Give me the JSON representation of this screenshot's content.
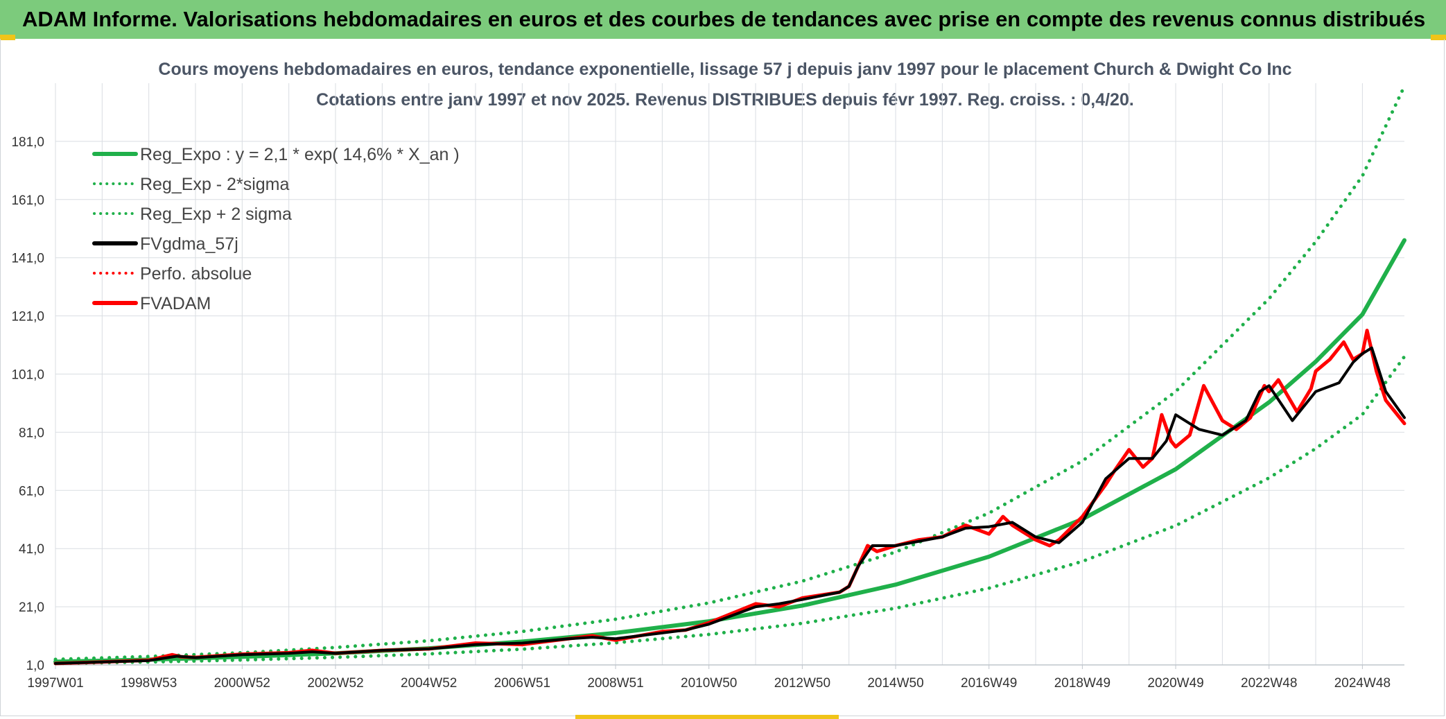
{
  "header": {
    "banner": "ADAM Informe. Valorisations hebdomadaires en euros et des courbes de tendances avec prise en compte des revenus connus distribués"
  },
  "colors": {
    "banner_bg": "#7ccb7c",
    "trend": "#1fb04a",
    "price": "#ff0000",
    "smoothed": "#000000",
    "accent": "#f0c419"
  },
  "chart_data": {
    "type": "line",
    "title": "Cours moyens hebdomadaires en euros, tendance exponentielle, lissage 57 j depuis janv 1997 pour le placement Church & Dwight Co Inc",
    "subtitle": "Cotations entre janv 1997 et nov 2025. Revenus DISTRIBUES depuis févr 1997. Reg. croiss. : 0,4/20.",
    "xlabel": "",
    "ylabel": "",
    "x_ticks": [
      "1997W01",
      "1998W53",
      "2000W52",
      "2002W52",
      "2004W52",
      "2006W51",
      "2008W51",
      "2010W50",
      "2012W50",
      "2014W50",
      "2016W49",
      "2018W49",
      "2020W49",
      "2022W48",
      "2024W48"
    ],
    "x_tick_years": [
      1997.0,
      1999.0,
      2001.0,
      2003.0,
      2005.0,
      2007.0,
      2009.0,
      2011.0,
      2013.0,
      2015.0,
      2017.0,
      2019.0,
      2021.0,
      2023.0,
      2025.0
    ],
    "y_ticks": [
      "1,0",
      "21,0",
      "41,0",
      "61,0",
      "81,0",
      "101,0",
      "121,0",
      "141,0",
      "161,0",
      "181,0"
    ],
    "ylim": [
      1,
      201
    ],
    "xlim": [
      1997.0,
      2025.9
    ],
    "grid": true,
    "legend_position": "top-left",
    "legend": [
      {
        "label": "Reg_Expo : y = 2,1 * exp( 14,6% *  X_an )",
        "style": "solid",
        "color": "#1fb04a"
      },
      {
        "label": "Reg_Exp - 2*sigma",
        "style": "dotted",
        "color": "#1fb04a"
      },
      {
        "label": "Reg_Exp + 2 sigma",
        "style": "dotted",
        "color": "#1fb04a"
      },
      {
        "label": "FVgdma_57j",
        "style": "solid",
        "color": "#000000"
      },
      {
        "label": "Perfo. absolue",
        "style": "dotted",
        "color": "#ff0000"
      },
      {
        "label": "FVADAM",
        "style": "solid",
        "color": "#ff0000"
      }
    ],
    "series": [
      {
        "name": "Reg_Expo : y = 2,1 * exp( 14,6% *  X_an )",
        "x": [
          1997.0,
          1999.0,
          2001.0,
          2003.0,
          2005.0,
          2007.0,
          2009.0,
          2011.0,
          2013.0,
          2015.0,
          2017.0,
          2019.0,
          2021.0,
          2023.0,
          2024.0,
          2025.0,
          2025.9
        ],
        "values": [
          2.1,
          2.8,
          3.8,
          5.0,
          6.7,
          9.0,
          12.0,
          16.0,
          21.4,
          28.6,
          38.2,
          51.1,
          68.3,
          91.3,
          105.3,
          121.5,
          147.0
        ]
      },
      {
        "name": "Reg_Exp - 2*sigma",
        "x": [
          1997.0,
          1999.0,
          2001.0,
          2003.0,
          2005.0,
          2007.0,
          2009.0,
          2011.0,
          2013.0,
          2015.0,
          2017.0,
          2019.0,
          2021.0,
          2023.0,
          2024.0,
          2025.0,
          2025.9
        ],
        "values": [
          1.5,
          2.0,
          2.7,
          3.6,
          4.8,
          6.4,
          8.6,
          11.5,
          15.3,
          20.5,
          27.4,
          36.6,
          48.9,
          65.3,
          75.4,
          87.1,
          107.0
        ]
      },
      {
        "name": "Reg_Exp + 2 sigma",
        "x": [
          1997.0,
          1999.0,
          2001.0,
          2003.0,
          2005.0,
          2007.0,
          2009.0,
          2011.0,
          2013.0,
          2015.0,
          2017.0,
          2019.0,
          2021.0,
          2023.0,
          2024.0,
          2025.0,
          2025.9
        ],
        "values": [
          2.9,
          3.9,
          5.2,
          7.0,
          9.3,
          12.5,
          16.7,
          22.3,
          29.8,
          39.8,
          53.2,
          71.1,
          95.0,
          126.9,
          146.5,
          169.1,
          200.0
        ]
      },
      {
        "name": "FVgdma_57j",
        "x": [
          1997.0,
          1998.0,
          1999.0,
          1999.6,
          2000.0,
          2001.0,
          2002.0,
          2002.5,
          2003.0,
          2004.0,
          2005.0,
          2006.0,
          2007.0,
          2008.0,
          2008.5,
          2009.0,
          2010.0,
          2010.5,
          2011.0,
          2012.0,
          2012.5,
          2013.0,
          2013.8,
          2014.0,
          2014.2,
          2014.5,
          2015.0,
          2016.0,
          2016.5,
          2017.0,
          2017.5,
          2018.0,
          2018.5,
          2019.0,
          2019.5,
          2020.0,
          2020.5,
          2020.8,
          2021.0,
          2021.5,
          2022.0,
          2022.5,
          2022.8,
          2023.0,
          2023.5,
          2024.0,
          2024.5,
          2024.8,
          2025.0,
          2025.2,
          2025.5,
          2025.9
        ],
        "values": [
          1.5,
          2.0,
          2.5,
          4.0,
          3.5,
          4.5,
          5.0,
          5.5,
          5.0,
          6.0,
          6.5,
          8.0,
          8.5,
          10.0,
          10.5,
          10.0,
          12.0,
          13.0,
          15.0,
          21.0,
          22.0,
          23.5,
          26.0,
          28.0,
          35.0,
          42.0,
          42.0,
          45.0,
          48.0,
          48.5,
          50.0,
          45.0,
          43.0,
          50.0,
          65.0,
          72.0,
          72.0,
          78.0,
          87.0,
          82.0,
          80.0,
          85.0,
          95.0,
          97.0,
          85.0,
          95.0,
          98.0,
          105.0,
          108.0,
          110.0,
          95.0,
          86.0
        ]
      },
      {
        "name": "FVADAM",
        "x": [
          1997.0,
          1998.0,
          1999.0,
          1999.5,
          1999.7,
          2000.0,
          2001.0,
          2002.0,
          2002.5,
          2003.0,
          2004.0,
          2005.0,
          2006.0,
          2007.0,
          2008.0,
          2008.5,
          2009.0,
          2010.0,
          2010.5,
          2011.0,
          2012.0,
          2012.5,
          2013.0,
          2013.8,
          2014.0,
          2014.2,
          2014.4,
          2014.6,
          2015.0,
          2015.5,
          2016.0,
          2016.5,
          2017.0,
          2017.3,
          2017.5,
          2018.0,
          2018.3,
          2018.5,
          2019.0,
          2019.5,
          2019.7,
          2020.0,
          2020.3,
          2020.5,
          2020.7,
          2020.9,
          2021.0,
          2021.3,
          2021.6,
          2022.0,
          2022.3,
          2022.6,
          2022.9,
          2023.0,
          2023.2,
          2023.6,
          2023.9,
          2024.0,
          2024.3,
          2024.6,
          2024.8,
          2025.0,
          2025.1,
          2025.3,
          2025.5,
          2025.7,
          2025.9
        ],
        "values": [
          1.5,
          2.0,
          2.6,
          4.5,
          3.8,
          3.6,
          4.7,
          5.2,
          6.0,
          5.0,
          6.0,
          6.5,
          8.5,
          8.0,
          10.0,
          11.0,
          9.5,
          12.5,
          13.0,
          15.5,
          22.0,
          21.0,
          24.0,
          26.0,
          28.0,
          35.0,
          42.0,
          40.0,
          42.0,
          44.0,
          45.0,
          49.0,
          46.0,
          52.0,
          49.0,
          44.0,
          42.0,
          44.0,
          52.0,
          63.0,
          68.0,
          75.0,
          69.0,
          72.0,
          87.0,
          78.0,
          76.0,
          80.0,
          97.0,
          85.0,
          82.0,
          86.0,
          97.0,
          95.0,
          99.0,
          88.0,
          96.0,
          102.0,
          106.0,
          112.0,
          106.0,
          108.0,
          116.0,
          102.0,
          92.0,
          88.0,
          84.0
        ]
      }
    ]
  }
}
